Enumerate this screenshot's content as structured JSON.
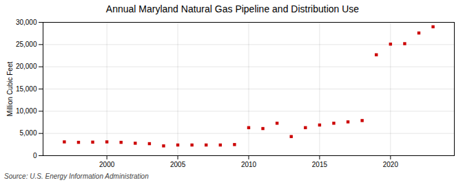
{
  "chart_data": {
    "type": "scatter",
    "title": "Annual Maryland Natural Gas Pipeline and Distribution Use",
    "ylabel": "Million Cubic Feet",
    "source": "Source: U.S. Energy Information Administration",
    "color": "#cc0000",
    "marker": "square",
    "x": [
      1997,
      1998,
      1999,
      2000,
      2001,
      2002,
      2003,
      2004,
      2005,
      2006,
      2007,
      2008,
      2009,
      2010,
      2011,
      2012,
      2013,
      2014,
      2015,
      2016,
      2017,
      2018,
      2019,
      2020,
      2021,
      2022,
      2023
    ],
    "values": [
      3100,
      3000,
      3050,
      3100,
      3000,
      2800,
      2700,
      2200,
      2400,
      2400,
      2400,
      2400,
      2500,
      6300,
      6100,
      7300,
      4300,
      6300,
      6900,
      7300,
      7600,
      7900,
      22700,
      25100,
      25200,
      27600,
      29000
    ],
    "xlim": [
      1995.5,
      2024.5
    ],
    "xticks": [
      2000,
      2005,
      2010,
      2015,
      2020
    ],
    "ylim": [
      0,
      30000
    ],
    "yticks": [
      0,
      {
        "value": 5000,
        "label": "5,000"
      },
      {
        "value": 10000,
        "label": "10,000"
      },
      {
        "value": 15000,
        "label": "15,000"
      },
      {
        "value": 20000,
        "label": "20,000"
      },
      {
        "value": 25000,
        "label": "25,000"
      },
      {
        "value": 30000,
        "label": "30,000"
      }
    ],
    "grid": true
  }
}
